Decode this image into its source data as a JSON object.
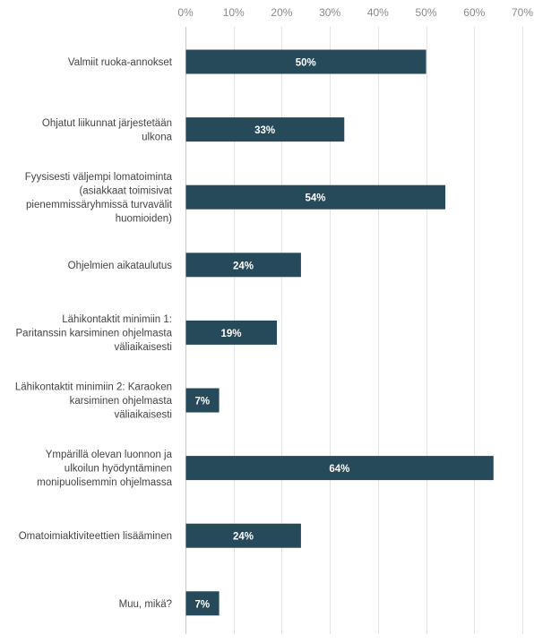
{
  "chart_data": {
    "type": "bar",
    "orientation": "horizontal",
    "categories": [
      [
        "Valmiit ruoka-annokset"
      ],
      [
        "Ohjatut liikunnat järjestetään",
        "ulkona"
      ],
      [
        "Fyysisesti väljempi lomatoiminta",
        "(asiakkaat toimisivat",
        "pienemmissäryhmissä turvavälit",
        "huomioiden)"
      ],
      [
        "Ohjelmien aikataulutus"
      ],
      [
        "Lähikontaktit minimiin 1:",
        "Paritanssin karsiminen ohjelmasta",
        "väliaikaisesti"
      ],
      [
        "Lähikontaktit minimiin 2: Karaoken",
        "karsiminen ohjelmasta",
        "väliaikaisesti"
      ],
      [
        "Ympärillä olevan luonnon ja",
        "ulkoilun hyödyntäminen",
        "monipuolisemmin ohjelmassa"
      ],
      [
        "Omatoimiaktiviteettien lisääminen"
      ],
      [
        "Muu, mikä?"
      ]
    ],
    "values": [
      50,
      33,
      54,
      24,
      19,
      7,
      64,
      24,
      7
    ],
    "value_labels": [
      "50%",
      "33%",
      "54%",
      "24%",
      "19%",
      "7%",
      "64%",
      "24%",
      "7%"
    ],
    "xlim": [
      0,
      70
    ],
    "xticks": [
      "0%",
      "10%",
      "20%",
      "30%",
      "40%",
      "50%",
      "60%",
      "70%"
    ],
    "xtick_values": [
      0,
      10,
      20,
      30,
      40,
      50,
      60,
      70
    ],
    "axis_position": "top",
    "grid": true,
    "bar_color": "#264a5a",
    "title": "",
    "xlabel": "",
    "ylabel": ""
  }
}
